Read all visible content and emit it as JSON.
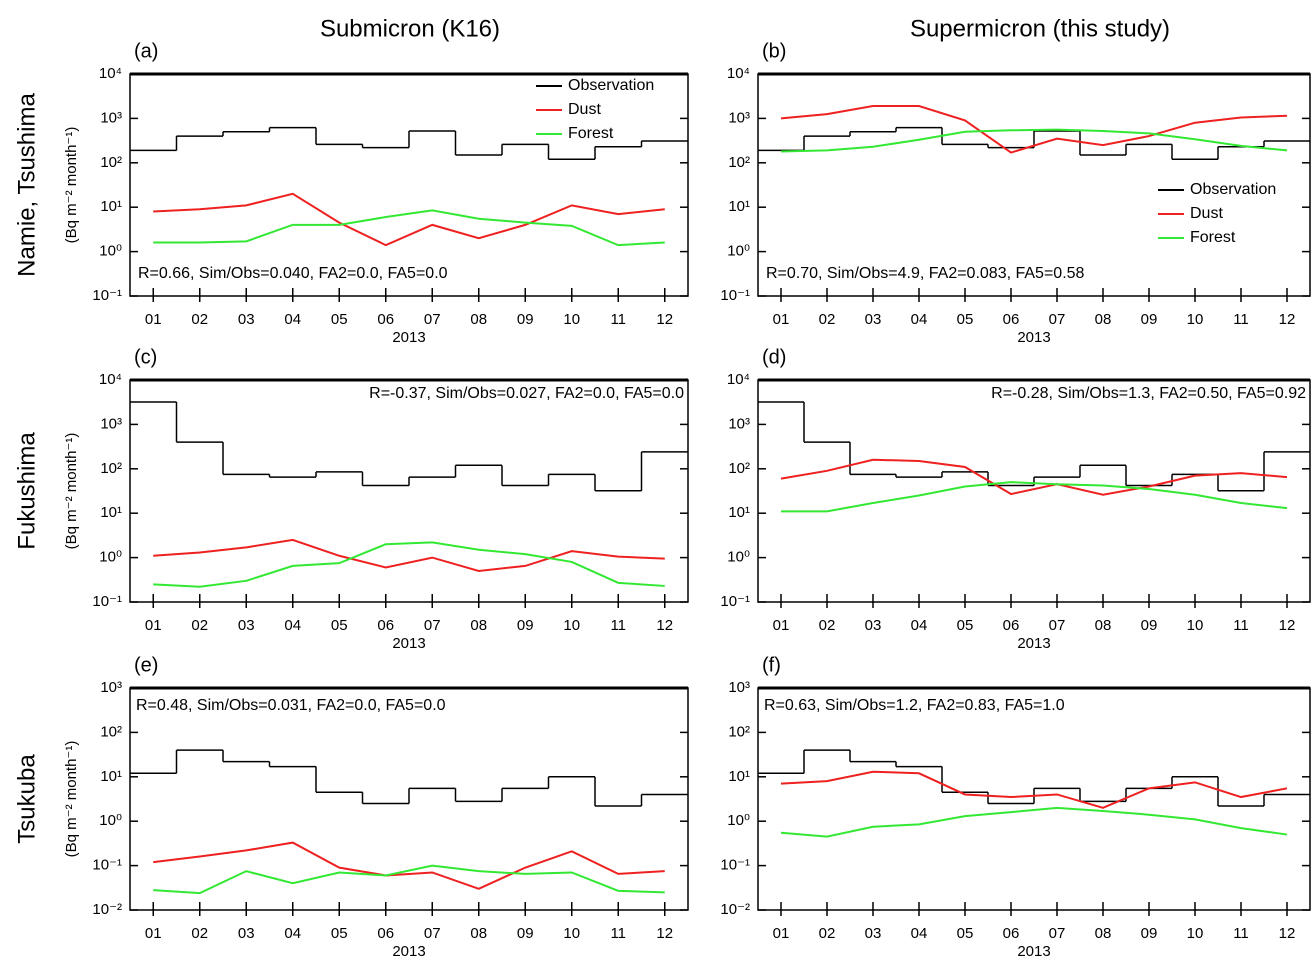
{
  "column_titles": [
    "Submicron (K16)",
    "Supermicron (this study)"
  ],
  "row_labels": [
    "Namie, Tsushima",
    "Fukushima",
    "Tsukuba"
  ],
  "chart_data": [
    {
      "type": "line",
      "panel_label": "(a)",
      "ylabel": "(Bq m⁻² month⁻¹)",
      "xlabel": "2013",
      "log_y": true,
      "categories": [
        "01",
        "02",
        "03",
        "04",
        "05",
        "06",
        "07",
        "08",
        "09",
        "10",
        "11",
        "12"
      ],
      "ylim": [
        0.1,
        10000
      ],
      "yticks": [
        {
          "value": 0.1,
          "label": "10⁻¹"
        },
        {
          "value": 1,
          "label": "10⁰"
        },
        {
          "value": 10,
          "label": "10¹"
        },
        {
          "value": 100,
          "label": "10²"
        },
        {
          "value": 1000,
          "label": "10³"
        },
        {
          "value": 10000,
          "label": "10⁴"
        }
      ],
      "legend": "upper right",
      "annotation": "R=0.66, Sim/Obs=0.040, FA2=0.0, FA5=0.0",
      "annotation_position": "lower left",
      "series": [
        {
          "name": "Observation",
          "color": "#000000",
          "drawstyle": "steps",
          "values": [
            190,
            400,
            500,
            620,
            260,
            220,
            520,
            150,
            260,
            120,
            230,
            310
          ]
        },
        {
          "name": "Dust",
          "color": "#ee2020",
          "drawstyle": "line",
          "values": [
            8,
            9,
            11,
            20,
            4.5,
            1.4,
            4,
            2,
            4,
            11,
            7,
            9
          ]
        },
        {
          "name": "Forest",
          "color": "#33e833",
          "drawstyle": "line",
          "values": [
            1.6,
            1.6,
            1.7,
            4,
            4,
            6,
            8.5,
            5.5,
            4.5,
            3.8,
            1.4,
            1.6
          ]
        }
      ]
    },
    {
      "type": "line",
      "panel_label": "(b)",
      "xlabel": "2013",
      "log_y": true,
      "categories": [
        "01",
        "02",
        "03",
        "04",
        "05",
        "06",
        "07",
        "08",
        "09",
        "10",
        "11",
        "12"
      ],
      "ylim": [
        0.1,
        10000
      ],
      "yticks": [
        {
          "value": 0.1,
          "label": "10⁻¹"
        },
        {
          "value": 1,
          "label": "10⁰"
        },
        {
          "value": 10,
          "label": "10¹"
        },
        {
          "value": 100,
          "label": "10²"
        },
        {
          "value": 1000,
          "label": "10³"
        },
        {
          "value": 10000,
          "label": "10⁴"
        }
      ],
      "legend": "center right",
      "annotation": "R=0.70, Sim/Obs=4.9, FA2=0.083, FA5=0.58",
      "annotation_position": "lower left",
      "series": [
        {
          "name": "Observation",
          "color": "#000000",
          "drawstyle": "steps",
          "values": [
            190,
            400,
            500,
            620,
            260,
            220,
            520,
            150,
            260,
            120,
            230,
            310
          ]
        },
        {
          "name": "Dust",
          "color": "#ee2020",
          "drawstyle": "line",
          "values": [
            1000,
            1250,
            1900,
            1900,
            900,
            170,
            350,
            250,
            400,
            800,
            1050,
            1150
          ]
        },
        {
          "name": "Forest",
          "color": "#33e833",
          "drawstyle": "line",
          "values": [
            180,
            190,
            230,
            330,
            500,
            540,
            560,
            520,
            460,
            340,
            240,
            190
          ]
        }
      ]
    },
    {
      "type": "line",
      "panel_label": "(c)",
      "ylabel": "(Bq m⁻² month⁻¹)",
      "xlabel": "2013",
      "log_y": true,
      "categories": [
        "01",
        "02",
        "03",
        "04",
        "05",
        "06",
        "07",
        "08",
        "09",
        "10",
        "11",
        "12"
      ],
      "ylim": [
        0.1,
        10000
      ],
      "yticks": [
        {
          "value": 0.1,
          "label": "10⁻¹"
        },
        {
          "value": 1,
          "label": "10⁰"
        },
        {
          "value": 10,
          "label": "10¹"
        },
        {
          "value": 100,
          "label": "10²"
        },
        {
          "value": 1000,
          "label": "10³"
        },
        {
          "value": 10000,
          "label": "10⁴"
        }
      ],
      "legend": "none",
      "annotation": "R=-0.37, Sim/Obs=0.027, FA2=0.0, FA5=0.0",
      "annotation_position": "upper right",
      "series": [
        {
          "name": "Observation",
          "color": "#000000",
          "drawstyle": "steps",
          "values": [
            3200,
            400,
            75,
            65,
            85,
            42,
            65,
            120,
            42,
            75,
            32,
            240
          ]
        },
        {
          "name": "Dust",
          "color": "#ee2020",
          "drawstyle": "line",
          "values": [
            1.1,
            1.3,
            1.7,
            2.5,
            1.1,
            0.6,
            1.0,
            0.5,
            0.65,
            1.4,
            1.05,
            0.95
          ]
        },
        {
          "name": "Forest",
          "color": "#33e833",
          "drawstyle": "line",
          "values": [
            0.25,
            0.22,
            0.3,
            0.65,
            0.75,
            2.0,
            2.2,
            1.5,
            1.2,
            0.8,
            0.27,
            0.23
          ]
        }
      ]
    },
    {
      "type": "line",
      "panel_label": "(d)",
      "xlabel": "2013",
      "log_y": true,
      "categories": [
        "01",
        "02",
        "03",
        "04",
        "05",
        "06",
        "07",
        "08",
        "09",
        "10",
        "11",
        "12"
      ],
      "ylim": [
        0.1,
        10000
      ],
      "yticks": [
        {
          "value": 0.1,
          "label": "10⁻¹"
        },
        {
          "value": 1,
          "label": "10⁰"
        },
        {
          "value": 10,
          "label": "10¹"
        },
        {
          "value": 100,
          "label": "10²"
        },
        {
          "value": 1000,
          "label": "10³"
        },
        {
          "value": 10000,
          "label": "10⁴"
        }
      ],
      "legend": "none",
      "annotation": "R=-0.28, Sim/Obs=1.3, FA2=0.50, FA5=0.92",
      "annotation_position": "upper right",
      "series": [
        {
          "name": "Observation",
          "color": "#000000",
          "drawstyle": "steps",
          "values": [
            3200,
            400,
            75,
            65,
            85,
            42,
            65,
            120,
            42,
            75,
            32,
            240
          ]
        },
        {
          "name": "Dust",
          "color": "#ee2020",
          "drawstyle": "line",
          "values": [
            60,
            90,
            160,
            150,
            110,
            27,
            45,
            26,
            40,
            70,
            80,
            65
          ]
        },
        {
          "name": "Forest",
          "color": "#33e833",
          "drawstyle": "line",
          "values": [
            11,
            11,
            17,
            25,
            40,
            50,
            45,
            42,
            35,
            26,
            17,
            13
          ]
        }
      ]
    },
    {
      "type": "line",
      "panel_label": "(e)",
      "ylabel": "(Bq m⁻² month⁻¹)",
      "xlabel": "2013",
      "log_y": true,
      "categories": [
        "01",
        "02",
        "03",
        "04",
        "05",
        "06",
        "07",
        "08",
        "09",
        "10",
        "11",
        "12"
      ],
      "ylim": [
        0.01,
        1000
      ],
      "yticks": [
        {
          "value": 0.01,
          "label": "10⁻²"
        },
        {
          "value": 0.1,
          "label": "10⁻¹"
        },
        {
          "value": 1,
          "label": "10⁰"
        },
        {
          "value": 10,
          "label": "10¹"
        },
        {
          "value": 100,
          "label": "10²"
        },
        {
          "value": 1000,
          "label": "10³"
        }
      ],
      "legend": "none",
      "annotation": "R=0.48, Sim/Obs=0.031, FA2=0.0, FA5=0.0",
      "annotation_position": "upper left",
      "series": [
        {
          "name": "Observation",
          "color": "#000000",
          "drawstyle": "steps",
          "values": [
            12,
            40,
            22,
            17,
            4.5,
            2.5,
            5.5,
            2.8,
            5.5,
            10,
            2.2,
            4
          ]
        },
        {
          "name": "Dust",
          "color": "#ee2020",
          "drawstyle": "line",
          "values": [
            0.12,
            0.16,
            0.22,
            0.33,
            0.09,
            0.06,
            0.07,
            0.03,
            0.09,
            0.21,
            0.065,
            0.075
          ]
        },
        {
          "name": "Forest",
          "color": "#33e833",
          "drawstyle": "line",
          "values": [
            0.028,
            0.024,
            0.075,
            0.04,
            0.07,
            0.06,
            0.1,
            0.075,
            0.065,
            0.07,
            0.027,
            0.025
          ]
        }
      ]
    },
    {
      "type": "line",
      "panel_label": "(f)",
      "xlabel": "2013",
      "log_y": true,
      "categories": [
        "01",
        "02",
        "03",
        "04",
        "05",
        "06",
        "07",
        "08",
        "09",
        "10",
        "11",
        "12"
      ],
      "ylim": [
        0.01,
        1000
      ],
      "yticks": [
        {
          "value": 0.01,
          "label": "10⁻²"
        },
        {
          "value": 0.1,
          "label": "10⁻¹"
        },
        {
          "value": 1,
          "label": "10⁰"
        },
        {
          "value": 10,
          "label": "10¹"
        },
        {
          "value": 100,
          "label": "10²"
        },
        {
          "value": 1000,
          "label": "10³"
        }
      ],
      "legend": "none",
      "annotation": "R=0.63, Sim/Obs=1.2, FA2=0.83, FA5=1.0",
      "annotation_position": "upper left",
      "series": [
        {
          "name": "Observation",
          "color": "#000000",
          "drawstyle": "steps",
          "values": [
            12,
            40,
            22,
            17,
            4.5,
            2.5,
            5.5,
            2.8,
            5.5,
            10,
            2.2,
            4
          ]
        },
        {
          "name": "Dust",
          "color": "#ee2020",
          "drawstyle": "line",
          "values": [
            7,
            8,
            13,
            12,
            4,
            3.5,
            4,
            2,
            5.5,
            7.5,
            3.5,
            5.5
          ]
        },
        {
          "name": "Forest",
          "color": "#33e833",
          "drawstyle": "line",
          "values": [
            0.55,
            0.45,
            0.75,
            0.85,
            1.3,
            1.6,
            2.0,
            1.7,
            1.4,
            1.1,
            0.7,
            0.5
          ]
        }
      ]
    }
  ]
}
